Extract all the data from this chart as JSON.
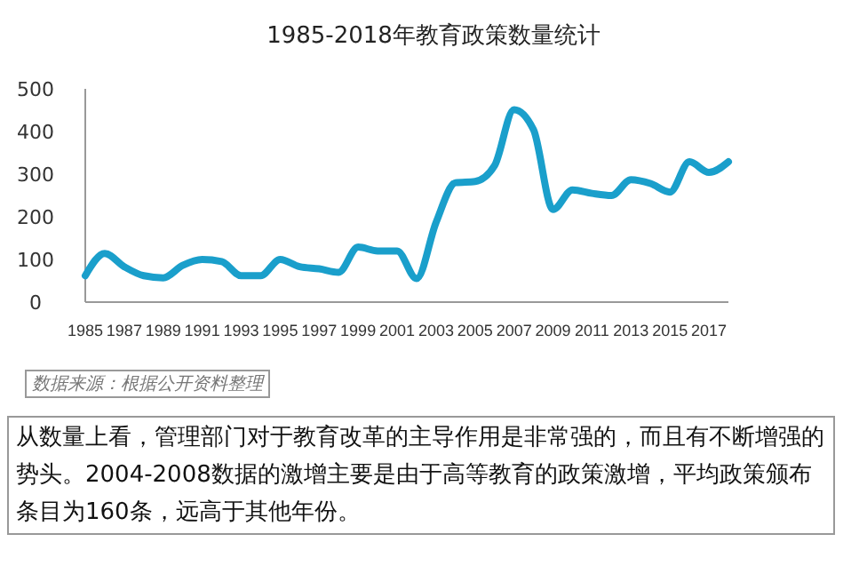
{
  "chart_data": {
    "type": "line",
    "title": "1985-2018年教育政策数量统计",
    "x": [
      1985,
      1986,
      1987,
      1988,
      1989,
      1990,
      1991,
      1992,
      1993,
      1994,
      1995,
      1996,
      1997,
      1998,
      1999,
      2000,
      2001,
      2002,
      2003,
      2004,
      2005,
      2006,
      2007,
      2008,
      2009,
      2010,
      2011,
      2012,
      2013,
      2014,
      2015,
      2016,
      2017,
      2018
    ],
    "series": [
      {
        "color": "#1a9fcb",
        "values": [
          62,
          114,
          83,
          62,
          57,
          86,
          100,
          95,
          62,
          62,
          100,
          83,
          78,
          70,
          129,
          120,
          120,
          55,
          187,
          280,
          283,
          320,
          451,
          404,
          217,
          263,
          255,
          250,
          287,
          278,
          258,
          329,
          304,
          329
        ]
      }
    ],
    "xlim": [
      1985,
      2018
    ],
    "xticks": [
      1985,
      1987,
      1989,
      1991,
      1993,
      1995,
      1997,
      1999,
      2001,
      2003,
      2005,
      2007,
      2009,
      2011,
      2013,
      2015,
      2017
    ],
    "ylim": [
      0,
      500
    ],
    "yticks": [
      0,
      100,
      200,
      300,
      400,
      500
    ],
    "grid": false,
    "marker": "none",
    "line_style": "solid",
    "annotations": [
      "数据来源：根据公开资料整理",
      "从数量上看，管理部门对于教育改革的主导作用是非常强的，而且有不断增强的势头。2004-2008数据的激增主要是由于高等教育的政策激增，平均政策颁布条目为160条，远高于其他年份。"
    ]
  }
}
